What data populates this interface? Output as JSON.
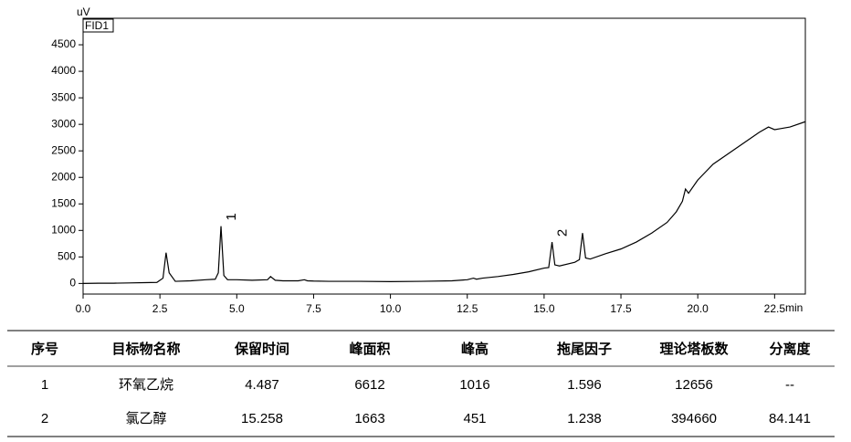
{
  "chart_data": {
    "type": "line",
    "x_label": "min",
    "y_label": "uV",
    "x": [
      0,
      0.5,
      1,
      1.5,
      2,
      2.4,
      2.6,
      2.7,
      2.8,
      3.0,
      3.5,
      4.0,
      4.3,
      4.4,
      4.487,
      4.58,
      4.7,
      5.0,
      5.5,
      6.0,
      6.1,
      6.25,
      6.5,
      7.0,
      7.2,
      7.3,
      7.5,
      8,
      9,
      10,
      11,
      12,
      12.5,
      12.7,
      12.8,
      13,
      13.5,
      14,
      14.5,
      15,
      15.15,
      15.258,
      15.35,
      15.5,
      16,
      16.15,
      16.25,
      16.35,
      16.5,
      17,
      17.5,
      18,
      18.5,
      19,
      19.3,
      19.5,
      19.6,
      19.7,
      20,
      20.5,
      21,
      21.5,
      22,
      22.3,
      22.5,
      22.7,
      23,
      23.5
    ],
    "series": [
      {
        "name": "FID1",
        "color": "#000000",
        "values": [
          0,
          5,
          5,
          10,
          15,
          20,
          100,
          580,
          200,
          40,
          50,
          70,
          80,
          200,
          1080,
          150,
          70,
          70,
          60,
          70,
          130,
          60,
          50,
          50,
          70,
          50,
          45,
          40,
          40,
          35,
          40,
          50,
          70,
          100,
          80,
          100,
          130,
          170,
          220,
          290,
          300,
          780,
          350,
          330,
          400,
          450,
          950,
          480,
          460,
          560,
          650,
          780,
          950,
          1150,
          1350,
          1550,
          1780,
          1700,
          1950,
          2250,
          2450,
          2650,
          2850,
          2950,
          2900,
          2920,
          2950,
          3050
        ]
      }
    ],
    "peak_labels": [
      {
        "label": "1",
        "x": 4.487,
        "y": 1080
      },
      {
        "label": "2",
        "x": 15.258,
        "y": 780
      }
    ],
    "xlim": [
      0,
      23.5
    ],
    "ylim": [
      -200,
      5000
    ],
    "xticks": [
      {
        "value": 0,
        "label": "0.0"
      },
      2.5,
      {
        "value": 5,
        "label": "5.0"
      },
      7.5,
      {
        "value": 10,
        "label": "10.0"
      },
      12.5,
      {
        "value": 15,
        "label": "15.0"
      },
      17.5,
      {
        "value": 20,
        "label": "20.0"
      },
      22.5
    ],
    "yticks": [
      0,
      500,
      1000,
      1500,
      2000,
      2500,
      3000,
      3500,
      4000,
      4500
    ]
  },
  "table": {
    "columns": [
      "序号",
      "目标物名称",
      "保留时间",
      "峰面积",
      "峰高",
      "拖尾因子",
      "理论塔板数",
      "分离度"
    ],
    "rows": [
      [
        "1",
        "环氧乙烷",
        "4.487",
        "6612",
        "1016",
        "1.596",
        "12656",
        "--"
      ],
      [
        "2",
        "氯乙醇",
        "15.258",
        "1663",
        "451",
        "1.238",
        "394660",
        "84.141"
      ]
    ]
  }
}
